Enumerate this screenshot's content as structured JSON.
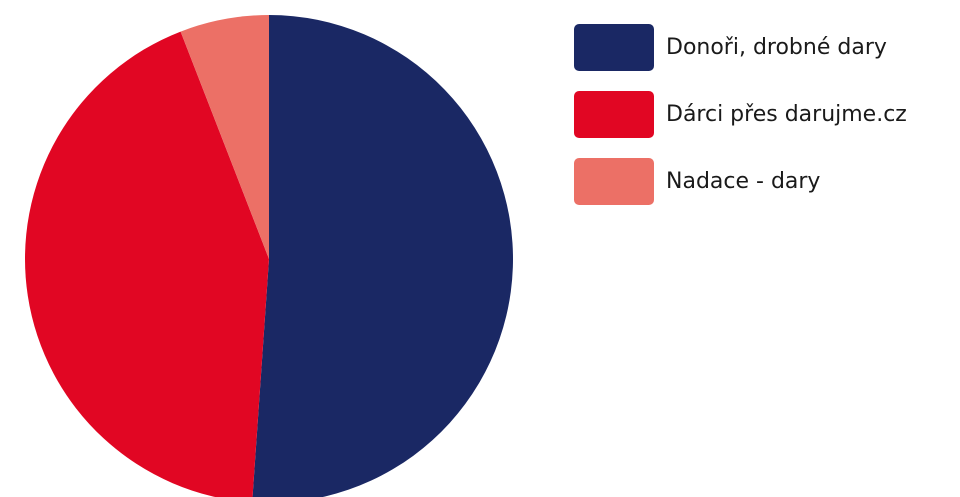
{
  "chart_data": {
    "type": "pie",
    "title": "",
    "legend_position": "right",
    "start_angle": "12 o'clock",
    "direction": "clockwise",
    "slices": [
      {
        "label": "Donoři, drobné dary",
        "value": 51.1,
        "color": "#1a2864"
      },
      {
        "label": "Dárci přes darujme.cz",
        "value": 43.0,
        "color": "#e10623"
      },
      {
        "label": "Nadace - dary",
        "value": 5.9,
        "color": "#ec7066"
      }
    ]
  }
}
